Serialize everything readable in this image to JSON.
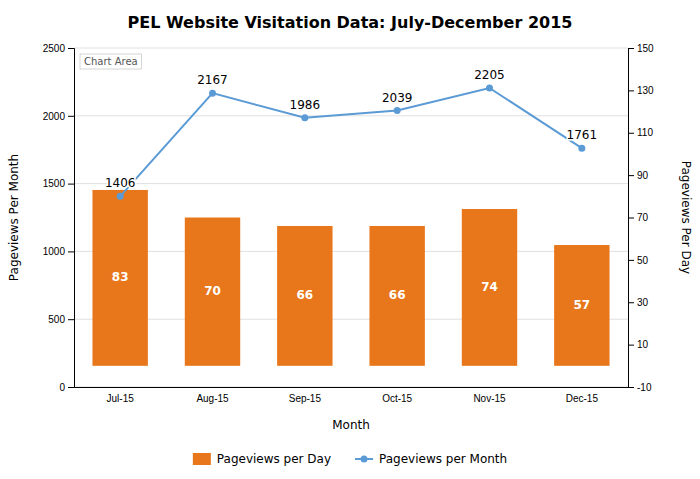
{
  "chart_data": {
    "type": "bar",
    "title": "PEL Website Visitation Data: July-December 2015",
    "categories": [
      "Jul-15",
      "Aug-15",
      "Sep-15",
      "Oct-15",
      "Nov-15",
      "Dec-15"
    ],
    "xlabel": "Month",
    "ylabel": "Pageviews Per Month",
    "y2label": "Pageviews Per Day",
    "ylim": [
      0,
      2500
    ],
    "yticks": [
      0,
      500,
      1000,
      1500,
      2000,
      2500
    ],
    "y2lim": [
      -10,
      150
    ],
    "y2ticks": [
      -10,
      10,
      30,
      50,
      70,
      90,
      110,
      130,
      150
    ],
    "grid": true,
    "legend": "bottom",
    "data_labels": true,
    "annotations": [
      "Chart Area"
    ],
    "series": [
      {
        "name": "Pageviews per Day",
        "type": "bar",
        "axis": "y2",
        "color": "#E8761A",
        "values": [
          83,
          70,
          66,
          66,
          74,
          57
        ]
      },
      {
        "name": "Pageviews per Month",
        "type": "line",
        "axis": "y",
        "color": "#5B9BD5",
        "marker": "circle",
        "values": [
          1406,
          2167,
          1986,
          2039,
          2205,
          1761
        ]
      }
    ]
  }
}
